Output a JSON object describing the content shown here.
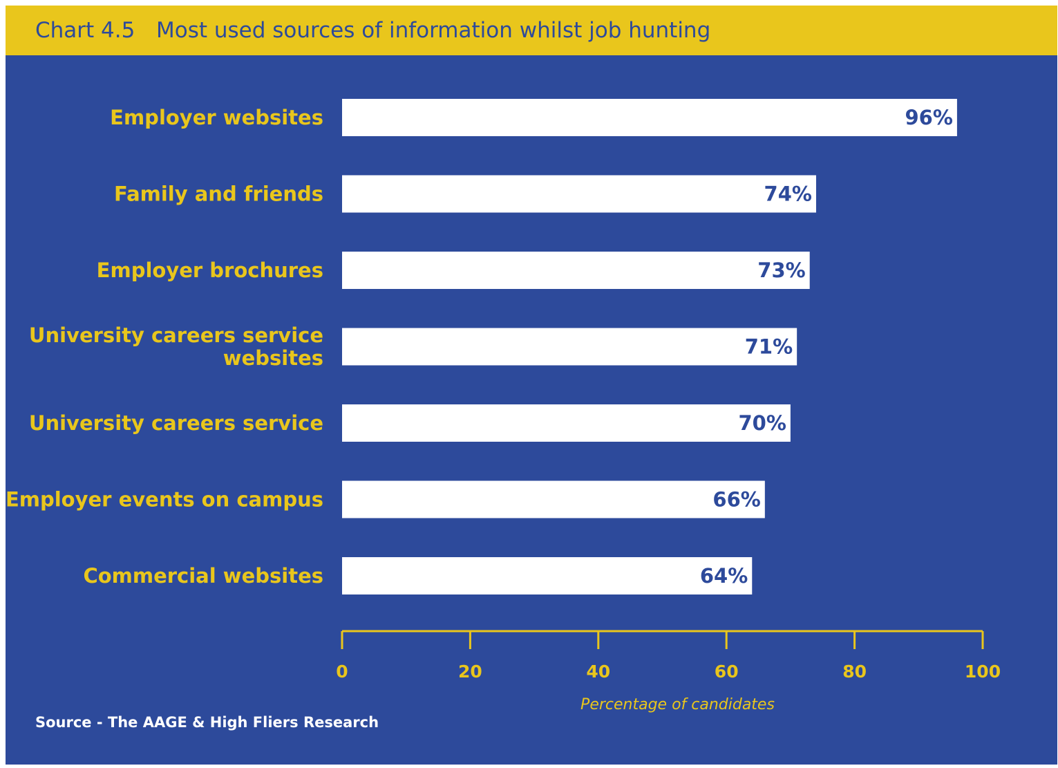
{
  "header": {
    "chart_number": "Chart 4.5",
    "title": "Most used sources of information whilst job hunting"
  },
  "source": "Source - The AAGE & High Fliers Research",
  "colors": {
    "background": "#2d4a9b",
    "accent": "#e9c61c",
    "bar": "#ffffff",
    "value_text": "#2d4a9b"
  },
  "chart_data": {
    "type": "bar",
    "orientation": "horizontal",
    "categories": [
      [
        "Employer websites"
      ],
      [
        "Family and friends"
      ],
      [
        "Employer brochures"
      ],
      [
        "University careers service",
        "websites"
      ],
      [
        "University careers service"
      ],
      [
        "Employer events on campus"
      ],
      [
        "Commercial websites"
      ]
    ],
    "values": [
      96,
      74,
      73,
      71,
      70,
      66,
      64
    ],
    "value_labels": [
      "96%",
      "74%",
      "73%",
      "71%",
      "70%",
      "66%",
      "64%"
    ],
    "xlabel": "Percentage of candidates",
    "xlim": [
      0,
      100
    ],
    "xticks": [
      0,
      20,
      40,
      60,
      80,
      100
    ],
    "xtick_labels": [
      "0",
      "20",
      "40",
      "60",
      "80",
      "100"
    ],
    "grid": false,
    "legend": false
  }
}
